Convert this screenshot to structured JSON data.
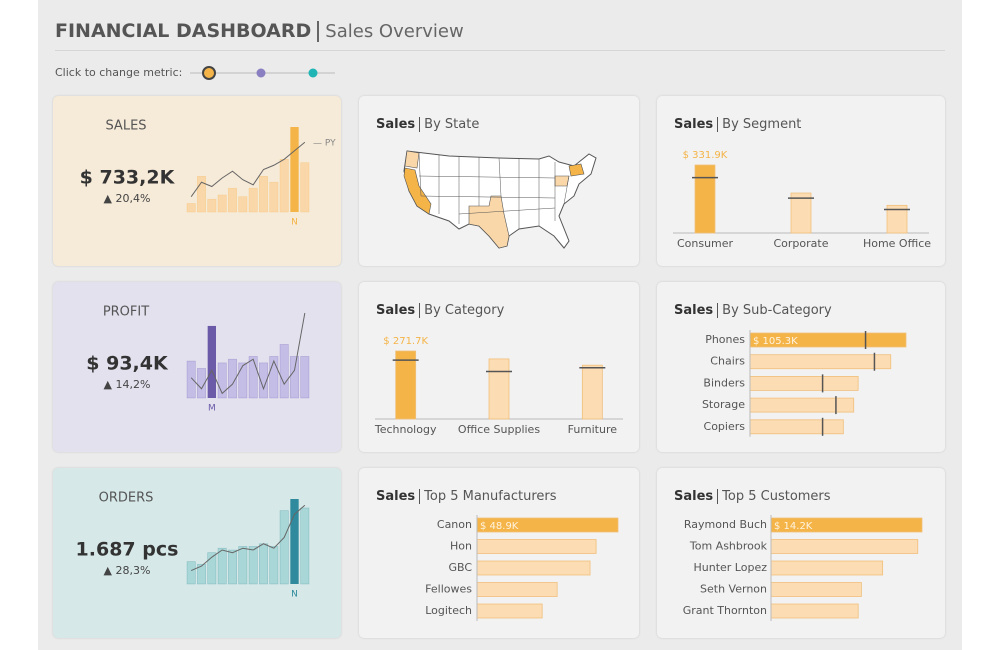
{
  "header": {
    "title": "FINANCIAL DASHBOARD",
    "subtitle": "Sales Overview",
    "metric_prompt": "Click to change metric:"
  },
  "metric_options": [
    {
      "color": "#f4b448"
    },
    {
      "color": "#8a7fc0"
    },
    {
      "color": "#1fb5b5"
    }
  ],
  "kpis": [
    {
      "label": "SALES",
      "value": "$ 733,2K",
      "change": "▲ 20,4%",
      "color": "#f4b448",
      "light": "#fad7a8",
      "background": "#f6ead8",
      "months": [
        null,
        null,
        null,
        null,
        null,
        null,
        null,
        null,
        null,
        null,
        "N",
        null
      ],
      "values": [
        10,
        42,
        15,
        20,
        28,
        18,
        28,
        42,
        35,
        62,
        100,
        58
      ],
      "prior": [
        18,
        35,
        30,
        40,
        48,
        38,
        32,
        50,
        55,
        62,
        72,
        82
      ],
      "prior_label": "— PY"
    },
    {
      "label": "PROFIT",
      "value": "$ 93,4K",
      "change": "▲ 14,2%",
      "color": "#6a5aa8",
      "light": "#c4bde6",
      "background": "#e4e1ef",
      "months": [
        null,
        null,
        "M",
        null,
        null,
        null,
        null,
        null,
        null,
        null,
        null,
        null
      ],
      "values": [
        40,
        32,
        78,
        38,
        42,
        38,
        45,
        38,
        45,
        58,
        45,
        45
      ],
      "prior": [
        22,
        10,
        30,
        5,
        15,
        35,
        42,
        10,
        40,
        15,
        30,
        92
      ]
    },
    {
      "label": "ORDERS",
      "value": "1.687 pcs",
      "change": "▲ 28,3%",
      "color": "#2e8a9c",
      "light": "#a9d6d6",
      "background": "#d7e8e8",
      "months": [
        null,
        null,
        null,
        null,
        null,
        null,
        null,
        null,
        null,
        null,
        "N",
        null
      ],
      "values": [
        25,
        22,
        35,
        40,
        38,
        42,
        42,
        45,
        42,
        82,
        95,
        85
      ],
      "prior": [
        15,
        20,
        30,
        38,
        35,
        40,
        38,
        45,
        40,
        52,
        78,
        88
      ]
    }
  ],
  "panels": [
    {
      "measure": "Sales",
      "title": "By State",
      "type": "map"
    },
    {
      "measure": "Sales",
      "title": "By Segment",
      "type": "column",
      "categories": [
        "Consumer",
        "Corporate",
        "Home Office"
      ],
      "values": [
        331.9,
        195,
        135
      ],
      "prior": [
        270,
        170,
        115
      ],
      "value_labels": [
        "$ 331.9K",
        null,
        null
      ]
    },
    {
      "measure": "Sales",
      "title": "By Category",
      "type": "column",
      "categories": [
        "Technology",
        "Office Supplies",
        "Furniture"
      ],
      "values": [
        271.7,
        240,
        215
      ],
      "prior": [
        235,
        190,
        205
      ],
      "value_labels": [
        "$ 271.7K",
        null,
        null
      ]
    },
    {
      "measure": "Sales",
      "title": "By Sub-Category",
      "type": "hbar",
      "categories": [
        "Phones",
        "Chairs",
        "Binders",
        "Storage",
        "Copiers"
      ],
      "values": [
        105.3,
        95,
        73,
        70,
        63
      ],
      "prior": [
        78,
        84,
        49,
        58,
        49
      ],
      "value_labels": [
        "$ 105.3K",
        null,
        null,
        null,
        null
      ]
    },
    {
      "measure": "Sales",
      "title": "Top 5 Manufacturers",
      "type": "hbar",
      "categories": [
        "Canon",
        "Hon",
        "GBC",
        "Fellowes",
        "Logitech"
      ],
      "values": [
        48.9,
        41.3,
        39.2,
        27.8,
        22.6
      ],
      "value_labels": [
        "$ 48.9K",
        null,
        null,
        null,
        null
      ]
    },
    {
      "measure": "Sales",
      "title": "Top 5 Customers",
      "type": "hbar",
      "categories": [
        "Raymond Buch",
        "Tom Ashbrook",
        "Hunter Lopez",
        "Seth Vernon",
        "Grant Thornton"
      ],
      "values": [
        14.2,
        13.8,
        10.5,
        8.5,
        8.2
      ],
      "value_labels": [
        "$ 14.2K",
        null,
        null,
        null,
        null
      ]
    }
  ]
}
